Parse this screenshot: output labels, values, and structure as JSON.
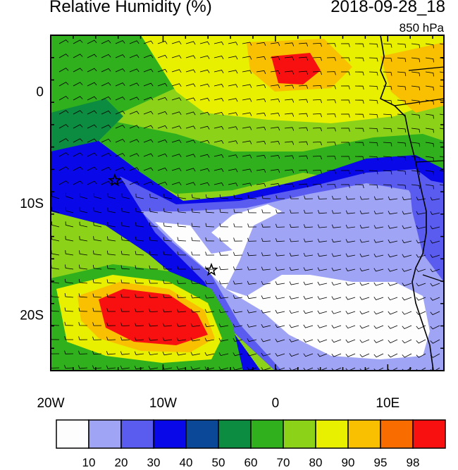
{
  "header": {
    "title": "Relative Humidity (%)",
    "valid_time": "2018-09-28_18",
    "level": "850 hPa"
  },
  "map": {
    "field": "Relative Humidity",
    "units": "%",
    "region": "Southeast Atlantic off southwest Africa",
    "lon_range": [
      -20,
      15
    ],
    "lat_range": [
      -25,
      5
    ],
    "lon_ticks": [
      {
        "value": -20,
        "label": "20W"
      },
      {
        "value": -10,
        "label": "10W"
      },
      {
        "value": 0,
        "label": "0"
      },
      {
        "value": 10,
        "label": "10E"
      }
    ],
    "lat_ticks": [
      {
        "value": 0,
        "label": "0"
      },
      {
        "value": -10,
        "label": "10S"
      },
      {
        "value": -20,
        "label": "20S"
      }
    ],
    "markers": [
      {
        "type": "star",
        "lon": -14.3,
        "lat": -8.0
      },
      {
        "type": "star",
        "lon": -5.7,
        "lat": -16.0
      }
    ],
    "overlay": "wind barbs"
  },
  "colorbar": {
    "levels": [
      "10",
      "20",
      "30",
      "40",
      "50",
      "60",
      "70",
      "80",
      "90",
      "95",
      "98"
    ],
    "colors": [
      "#fdfdfd",
      "#a0a4f4",
      "#5a5cf0",
      "#0808e8",
      "#0c4898",
      "#0c8c40",
      "#30b01c",
      "#8cd218",
      "#e8f000",
      "#f8c000",
      "#f86c00",
      "#f81010"
    ]
  }
}
